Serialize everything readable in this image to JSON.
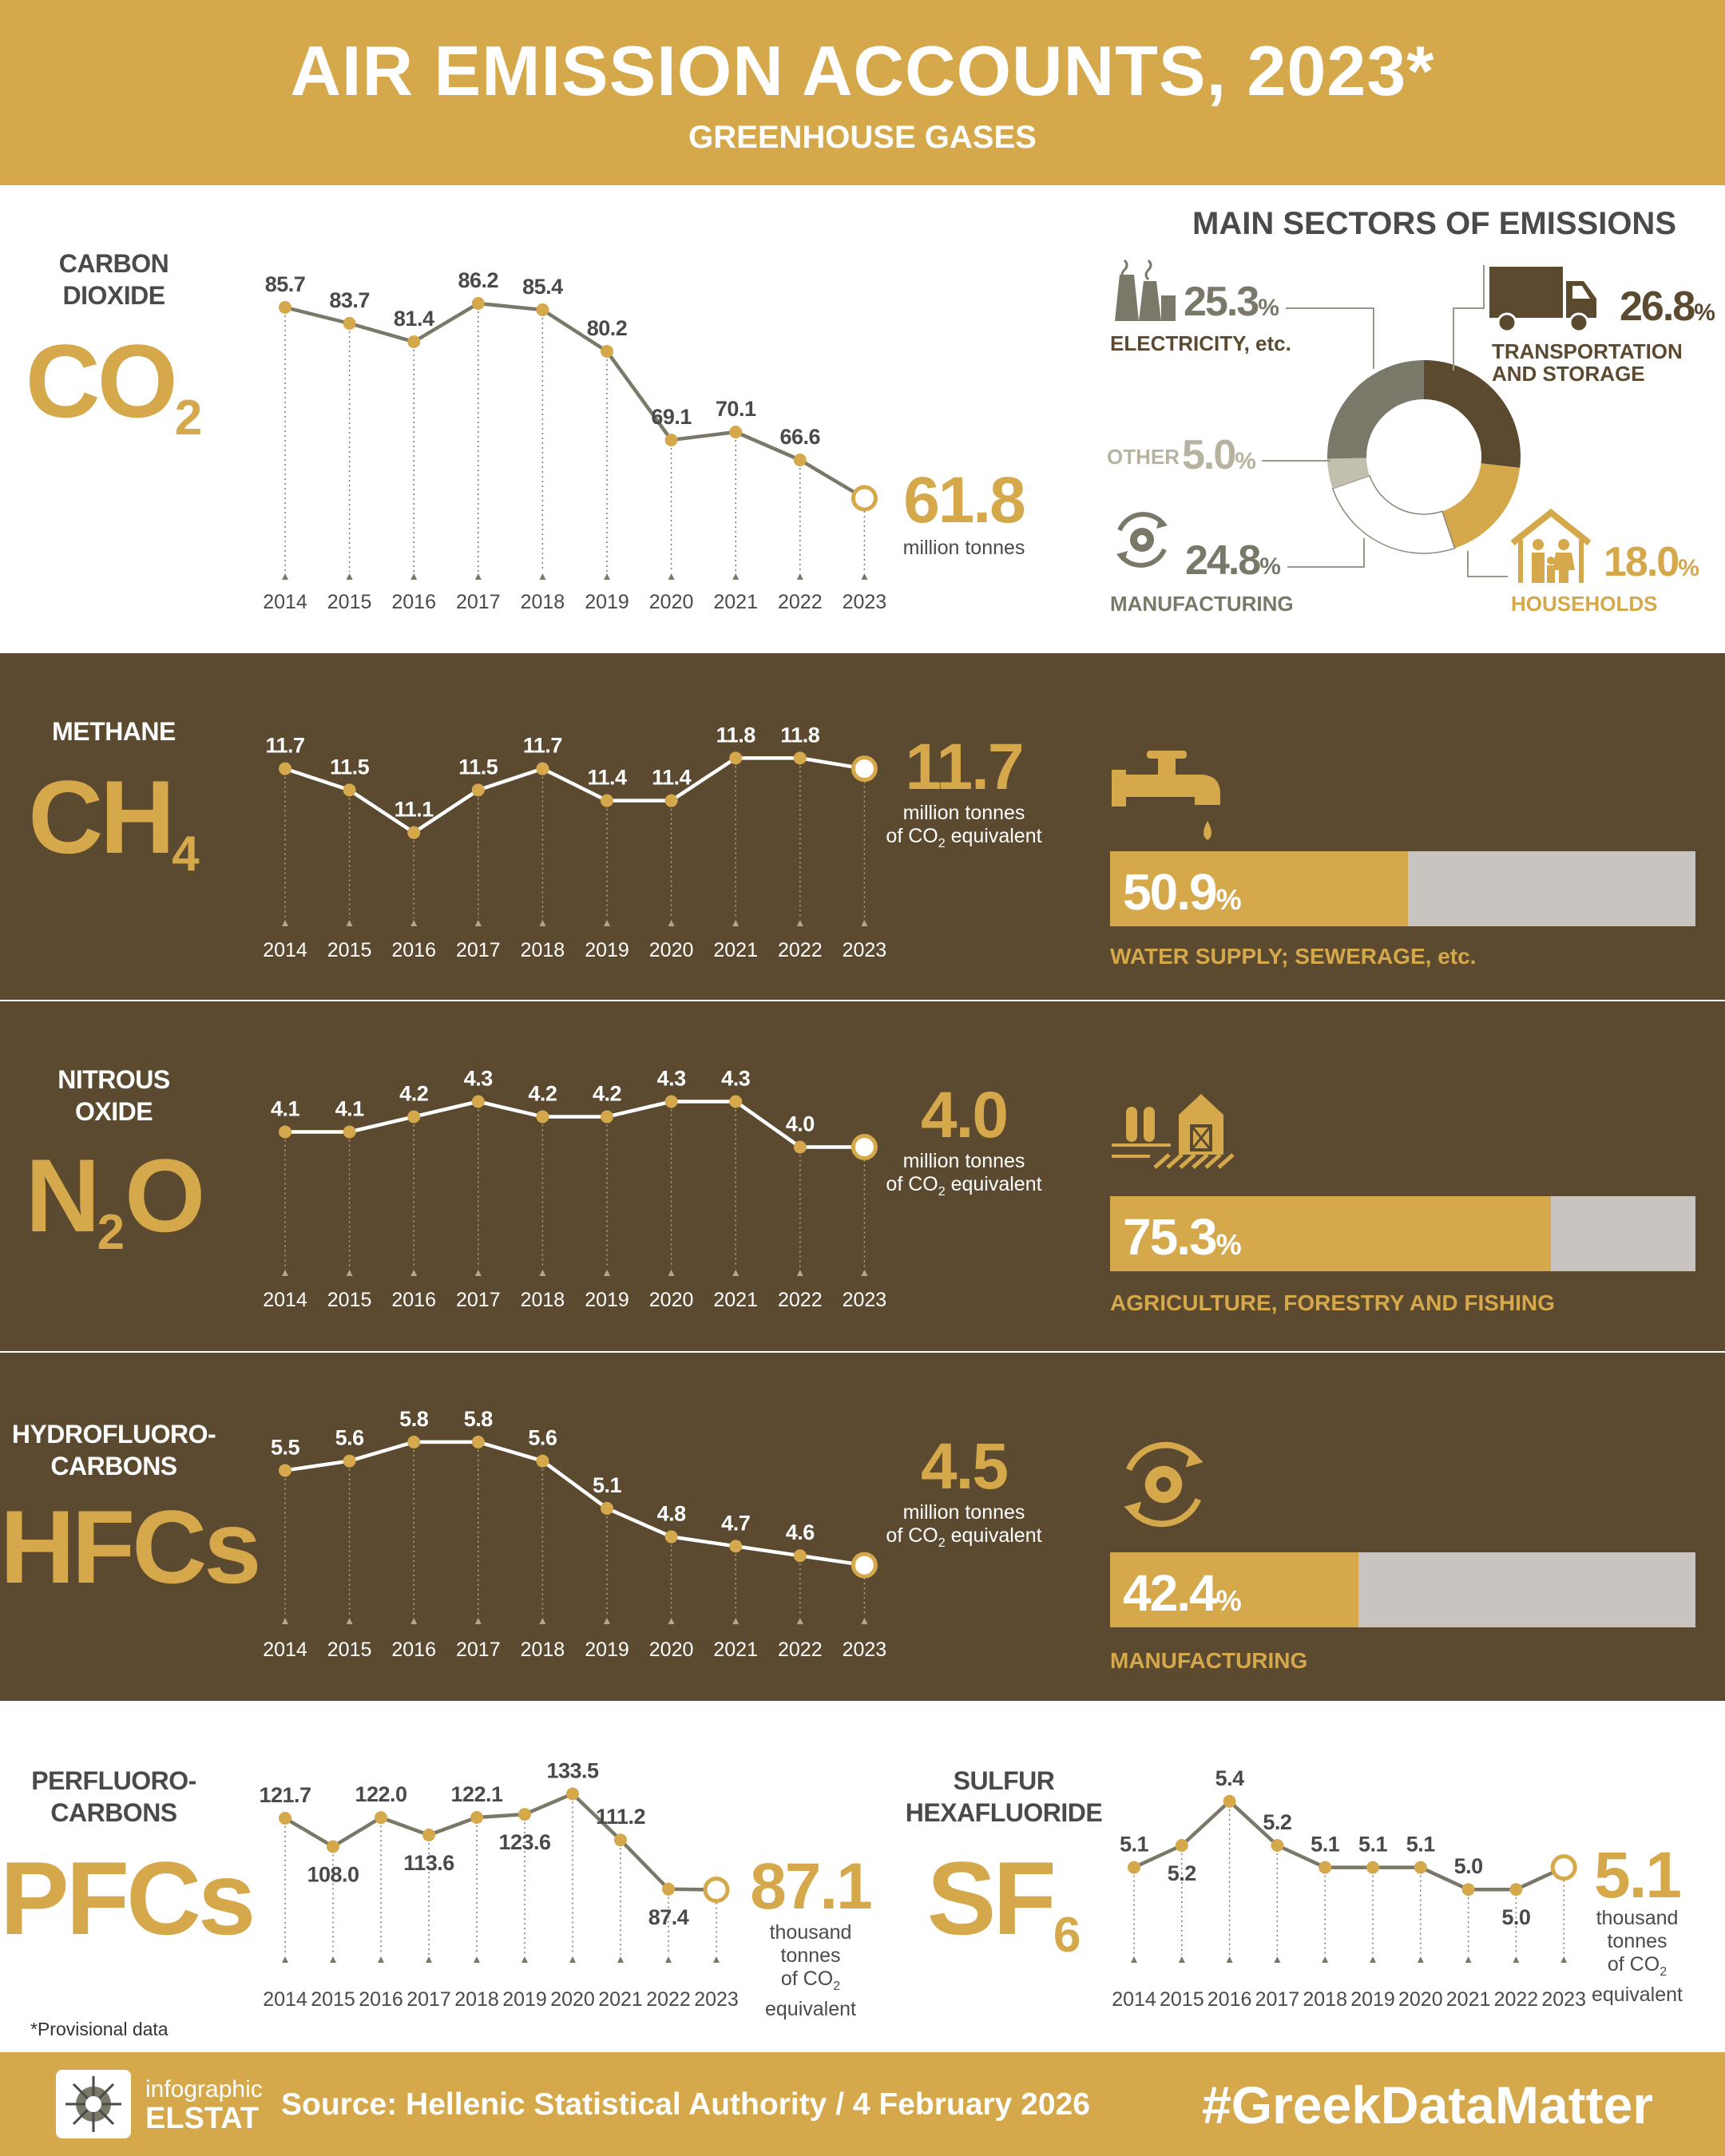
{
  "header": {
    "title": "AIR EMISSION ACCOUNTS,  2023*",
    "subtitle": "GREENHOUSE GASES"
  },
  "colors": {
    "gold": "#d4a84b",
    "brown": "#5c4a30",
    "gray_line": "#7a7868",
    "text_dark": "#4a4a4a"
  },
  "gases": {
    "co2": {
      "name": "CARBON DIOXIDE",
      "name_lines": [
        "CARBON",
        "DIOXIDE"
      ],
      "formula": "CO",
      "formula_sub": "2",
      "latest_value": "61.8",
      "unit_lines": [
        "million tonnes"
      ]
    },
    "ch4": {
      "name_lines": [
        "METHANE"
      ],
      "formula": "CH",
      "formula_sub": "4",
      "latest_value": "11.7",
      "unit_line1": "million tonnes",
      "unit_line2_pre": "of CO",
      "unit_line2_sub": "2",
      "unit_line2_post": " equivalent",
      "sector_pct": "50.9",
      "sector_pct_sym": "%",
      "sector_label": "WATER SUPPLY; SEWERAGE, etc.",
      "sector_icon": "faucet-icon",
      "share": 50.9
    },
    "n2o": {
      "name_lines": [
        "NITROUS",
        "OXIDE"
      ],
      "formula": "N",
      "formula_sub": "2",
      "formula_tail": "O",
      "latest_value": "4.0",
      "unit_line1": "million tonnes",
      "unit_line2_pre": "of CO",
      "unit_line2_sub": "2",
      "unit_line2_post": " equivalent",
      "sector_pct": "75.3",
      "sector_pct_sym": "%",
      "sector_label": "AGRICULTURE, FORESTRY AND FISHING",
      "sector_icon": "farm-barn-icon",
      "share": 75.3
    },
    "hfc": {
      "name_lines": [
        "HYDROFLUORO-",
        "CARBONS"
      ],
      "formula": "HFCs",
      "latest_value": "4.5",
      "unit_line1": "million tonnes",
      "unit_line2_pre": "of CO",
      "unit_line2_sub": "2",
      "unit_line2_post": " equivalent",
      "sector_pct": "42.4",
      "sector_pct_sym": "%",
      "sector_label": "MANUFACTURING",
      "sector_icon": "gear-cycle-icon",
      "share": 42.4
    },
    "pfc": {
      "name_lines": [
        "PERFLUORO-",
        "CARBONS"
      ],
      "formula": "PFCs",
      "latest_value": "87.1",
      "unit_lines": [
        "thousand",
        "tonnes"
      ],
      "unit_co2_pre": "of CO",
      "unit_co2_sub": "2",
      "unit_last": "equivalent"
    },
    "sf6": {
      "name_lines": [
        "SULFUR",
        "HEXAFLUORIDE"
      ],
      "formula": "SF",
      "formula_sub": "6",
      "latest_value": "5.1",
      "unit_lines": [
        "thousand",
        "tonnes"
      ],
      "unit_co2_pre": "of CO",
      "unit_co2_sub": "2",
      "unit_last": "equivalent"
    }
  },
  "sectors_co2": {
    "title": "MAIN SECTORS OF EMISSIONS",
    "items": [
      {
        "label": "TRANSPORTATION AND STORAGE",
        "label_lines": [
          "TRANSPORTATION",
          "AND STORAGE"
        ],
        "pct": "26.8",
        "value": 26.8,
        "color": "#5c4a30",
        "icon": "truck-icon"
      },
      {
        "label": "HOUSEHOLDS",
        "pct": "18.0",
        "value": 18.0,
        "color": "#d4a84b",
        "icon": "house-family-icon"
      },
      {
        "label": "MANUFACTURING",
        "pct": "24.8",
        "value": 24.8,
        "color": "#ffffff",
        "icon": "gear-cycle-icon"
      },
      {
        "label": "OTHER",
        "pct": "5.0",
        "value": 5.0,
        "color": "#c2bfae",
        "icon": ""
      },
      {
        "label": "ELECTRICITY, etc.",
        "pct": "25.3",
        "value": 25.3,
        "color": "#7a7868",
        "icon": "power-plant-icon"
      }
    ],
    "pct_sym": "%"
  },
  "chart_data": [
    {
      "type": "line",
      "title": "CARBON DIOXIDE",
      "x": [
        "2014",
        "2015",
        "2016",
        "2017",
        "2018",
        "2019",
        "2020",
        "2021",
        "2022",
        "2023"
      ],
      "values": [
        85.7,
        83.7,
        81.4,
        86.2,
        85.4,
        80.2,
        69.1,
        70.1,
        66.6,
        61.8
      ],
      "labels": [
        "85.7",
        "83.7",
        "81.4",
        "86.2",
        "85.4",
        "80.2",
        "69.1",
        "70.1",
        "66.6"
      ],
      "unit": "million tonnes"
    },
    {
      "type": "line",
      "title": "METHANE",
      "x": [
        "2014",
        "2015",
        "2016",
        "2017",
        "2018",
        "2019",
        "2020",
        "2021",
        "2022",
        "2023"
      ],
      "values": [
        11.7,
        11.5,
        11.1,
        11.5,
        11.7,
        11.4,
        11.4,
        11.8,
        11.8,
        11.7
      ],
      "labels": [
        "11.7",
        "11.5",
        "11.1",
        "11.5",
        "11.7",
        "11.4",
        "11.4",
        "11.8",
        "11.8"
      ],
      "unit": "million tonnes of CO2 equivalent"
    },
    {
      "type": "line",
      "title": "NITROUS OXIDE",
      "x": [
        "2014",
        "2015",
        "2016",
        "2017",
        "2018",
        "2019",
        "2020",
        "2021",
        "2022",
        "2023"
      ],
      "values": [
        4.1,
        4.1,
        4.2,
        4.3,
        4.2,
        4.2,
        4.3,
        4.3,
        4.0,
        4.0
      ],
      "labels": [
        "4.1",
        "4.1",
        "4.2",
        "4.3",
        "4.2",
        "4.2",
        "4.3",
        "4.3",
        "4.0"
      ],
      "unit": "million tonnes of CO2 equivalent"
    },
    {
      "type": "line",
      "title": "HYDROFLUOROCARBONS",
      "x": [
        "2014",
        "2015",
        "2016",
        "2017",
        "2018",
        "2019",
        "2020",
        "2021",
        "2022",
        "2023"
      ],
      "values": [
        5.5,
        5.6,
        5.8,
        5.8,
        5.6,
        5.1,
        4.8,
        4.7,
        4.6,
        4.5
      ],
      "labels": [
        "5.5",
        "5.6",
        "5.8",
        "5.8",
        "5.6",
        "5.1",
        "4.8",
        "4.7",
        "4.6"
      ],
      "unit": "million tonnes of CO2 equivalent"
    },
    {
      "type": "line",
      "title": "PERFLUOROCARBONS",
      "x": [
        "2014",
        "2015",
        "2016",
        "2017",
        "2018",
        "2019",
        "2020",
        "2021",
        "2022",
        "2023"
      ],
      "values": [
        121.7,
        108.0,
        122.0,
        113.6,
        122.1,
        123.6,
        133.5,
        111.2,
        87.4,
        87.1
      ],
      "labels": [
        "121.7",
        "108.0",
        "122.0",
        "113.6",
        "122.1",
        "123.6",
        "133.5",
        "111.2",
        "87.4"
      ],
      "unit": "thousand tonnes of CO2 equivalent"
    },
    {
      "type": "line",
      "title": "SULFUR HEXAFLUORIDE",
      "x": [
        "2014",
        "2015",
        "2016",
        "2017",
        "2018",
        "2019",
        "2020",
        "2021",
        "2022",
        "2023"
      ],
      "values": [
        5.1,
        5.2,
        5.4,
        5.2,
        5.1,
        5.1,
        5.1,
        5.0,
        5.0,
        5.1
      ],
      "labels": [
        "5.1",
        "5.2",
        "5.4",
        "5.2",
        "5.1",
        "5.1",
        "5.1",
        "5.0",
        "5.0"
      ],
      "unit": "thousand tonnes of CO2 equivalent"
    }
  ],
  "notes": {
    "provisional": "*Provisional data"
  },
  "footer": {
    "logo_line1": "infographic",
    "logo_line2": "ELSTAT",
    "source": "Source: Hellenic Statistical Authority / 4 February 2026",
    "hashtag": "#GreekDataMatter"
  }
}
